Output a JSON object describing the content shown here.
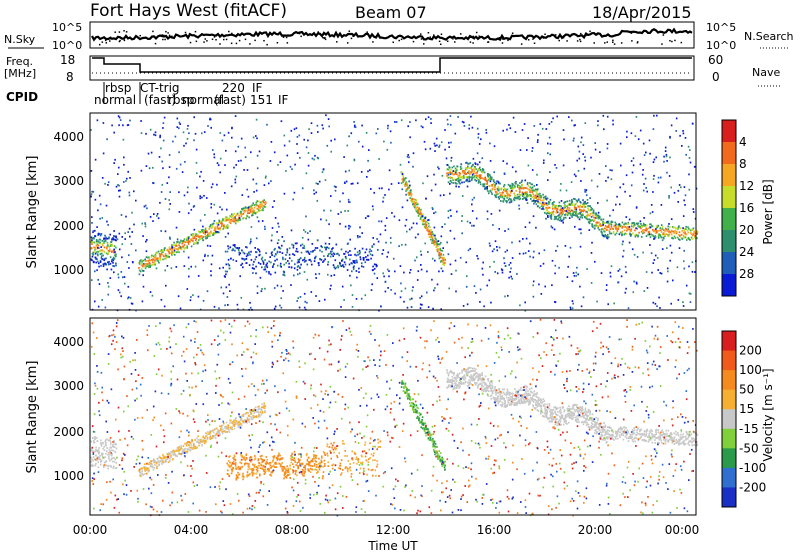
{
  "header": {
    "title": "Fort Hays West (fitACF)",
    "beam": "Beam 07",
    "date": "18/Apr/2015"
  },
  "top_panels": {
    "nsky_label": "N.Sky",
    "nsearch_label": "N.Search",
    "freq_label_line1": "Freq.",
    "freq_label_line2": "[MHz]",
    "nave_label": "Nave",
    "cpid_label": "CPID",
    "nsky_ticks": [
      "10^5",
      "10^0"
    ],
    "nsearch_ticks": [
      "10^5",
      "10^0"
    ],
    "freq_ticks": [
      "18",
      "8"
    ],
    "nave_ticks": [
      "60",
      "0"
    ],
    "cpid_segments": [
      "rbsp",
      "CT-trig",
      "220",
      "IF",
      "normal",
      "(fast)",
      "rbsp",
      "normal",
      "(fast)",
      "151",
      "IF"
    ]
  },
  "chart_data": [
    {
      "type": "heatmap",
      "title": "Power",
      "xlabel": "",
      "ylabel": "Slant Range [km]",
      "xlim": [
        "00:00",
        "24:00"
      ],
      "ylim": [
        180,
        4500
      ],
      "yticks": [
        "1000",
        "2000",
        "3000",
        "4000"
      ],
      "colorbar": {
        "label": "Power [dB]",
        "ticks": [
          "4",
          "8",
          "12",
          "16",
          "20",
          "24",
          "28"
        ],
        "colors": [
          "#0a1bd6",
          "#1f5fb8",
          "#2e8f6f",
          "#3fb04a",
          "#c8dc2a",
          "#f5a623",
          "#f26a1b",
          "#d91e1e"
        ]
      }
    },
    {
      "type": "heatmap",
      "title": "Velocity",
      "xlabel": "Time UT",
      "ylabel": "Slant Range [km]",
      "xlim": [
        "00:00",
        "24:00"
      ],
      "ylim": [
        180,
        4500
      ],
      "yticks": [
        "1000",
        "2000",
        "3000",
        "4000"
      ],
      "xticks": [
        "00:00",
        "04:00",
        "08:00",
        "12:00",
        "16:00",
        "20:00",
        "00:00"
      ],
      "colorbar": {
        "label": "Velocity [m s⁻¹]",
        "ticks": [
          "200",
          "100",
          "50",
          "15",
          "-15",
          "-50",
          "-100",
          "-200"
        ],
        "colors": [
          "#1a2fc4",
          "#2f6fd0",
          "#2b9a4a",
          "#7fd03a",
          "#c8c8c8",
          "#f5b032",
          "#f58a1f",
          "#f05a1a",
          "#d81e1e"
        ]
      }
    }
  ]
}
